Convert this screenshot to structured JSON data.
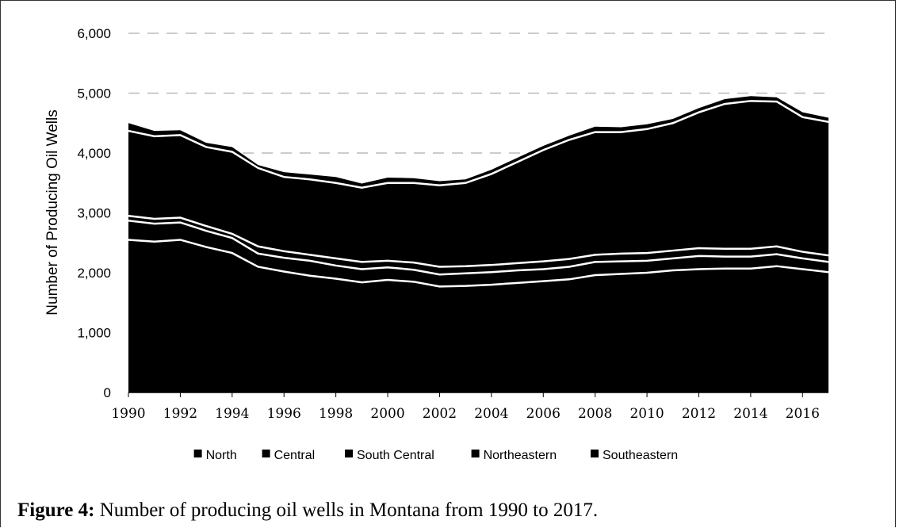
{
  "chart_data": {
    "type": "stacked_area",
    "y_label": "Number of Producing Oil Wells",
    "caption_label": "Figure 4:",
    "caption": "Number of producing oil wells in Montana from 1990 to 2017.",
    "x": [
      1990,
      1991,
      1992,
      1993,
      1994,
      1995,
      1996,
      1997,
      1998,
      1999,
      2000,
      2001,
      2002,
      2003,
      2004,
      2005,
      2006,
      2007,
      2008,
      2009,
      2010,
      2011,
      2012,
      2013,
      2014,
      2015,
      2016,
      2017
    ],
    "xlim": [
      1990,
      2017
    ],
    "xticks": [
      1990,
      1992,
      1994,
      1996,
      1998,
      2000,
      2002,
      2004,
      2006,
      2008,
      2010,
      2012,
      2014,
      2016
    ],
    "ylim": [
      0,
      6000
    ],
    "yticks": [
      0,
      {
        "value": 1000,
        "label": "1,000"
      },
      {
        "value": 2000,
        "label": "2,000"
      },
      {
        "value": 3000,
        "label": "3,000"
      },
      {
        "value": 4000,
        "label": "4,000"
      },
      {
        "value": 5000,
        "label": "5,000"
      },
      {
        "value": 6000,
        "label": "6,000"
      }
    ],
    "grid": true,
    "legend": "bottom",
    "series": [
      {
        "name": "North",
        "color": "#000000",
        "values": [
          2550,
          2520,
          2550,
          2430,
          2330,
          2100,
          2020,
          1950,
          1900,
          1840,
          1880,
          1850,
          1770,
          1780,
          1800,
          1830,
          1860,
          1890,
          1960,
          1980,
          2000,
          2040,
          2060,
          2070,
          2070,
          2110,
          2060,
          2010
        ]
      },
      {
        "name": "Central",
        "color": "#000000",
        "values": [
          320,
          300,
          290,
          270,
          250,
          220,
          230,
          250,
          220,
          220,
          210,
          200,
          200,
          210,
          210,
          210,
          200,
          210,
          220,
          210,
          200,
          200,
          220,
          200,
          200,
          200,
          180,
          170
        ]
      },
      {
        "name": "South Central",
        "color": "#000000",
        "values": [
          80,
          80,
          80,
          80,
          70,
          120,
          110,
          100,
          120,
          120,
          110,
          120,
          130,
          120,
          120,
          120,
          130,
          130,
          120,
          130,
          130,
          130,
          130,
          130,
          130,
          130,
          110,
          110
        ]
      },
      {
        "name": "Northeastern",
        "color": "#000000",
        "values": [
          1420,
          1380,
          1380,
          1320,
          1370,
          1310,
          1240,
          1260,
          1260,
          1240,
          1300,
          1330,
          1360,
          1390,
          1520,
          1690,
          1860,
          1990,
          2050,
          2030,
          2070,
          2130,
          2270,
          2420,
          2470,
          2420,
          2250,
          2230
        ]
      },
      {
        "name": "Southeastern",
        "color": "#000000",
        "values": [
          130,
          90,
          80,
          70,
          80,
          50,
          80,
          80,
          100,
          70,
          90,
          80,
          70,
          60,
          70,
          70,
          70,
          70,
          90,
          80,
          80,
          70,
          70,
          80,
          80,
          70,
          80,
          70
        ]
      }
    ]
  }
}
